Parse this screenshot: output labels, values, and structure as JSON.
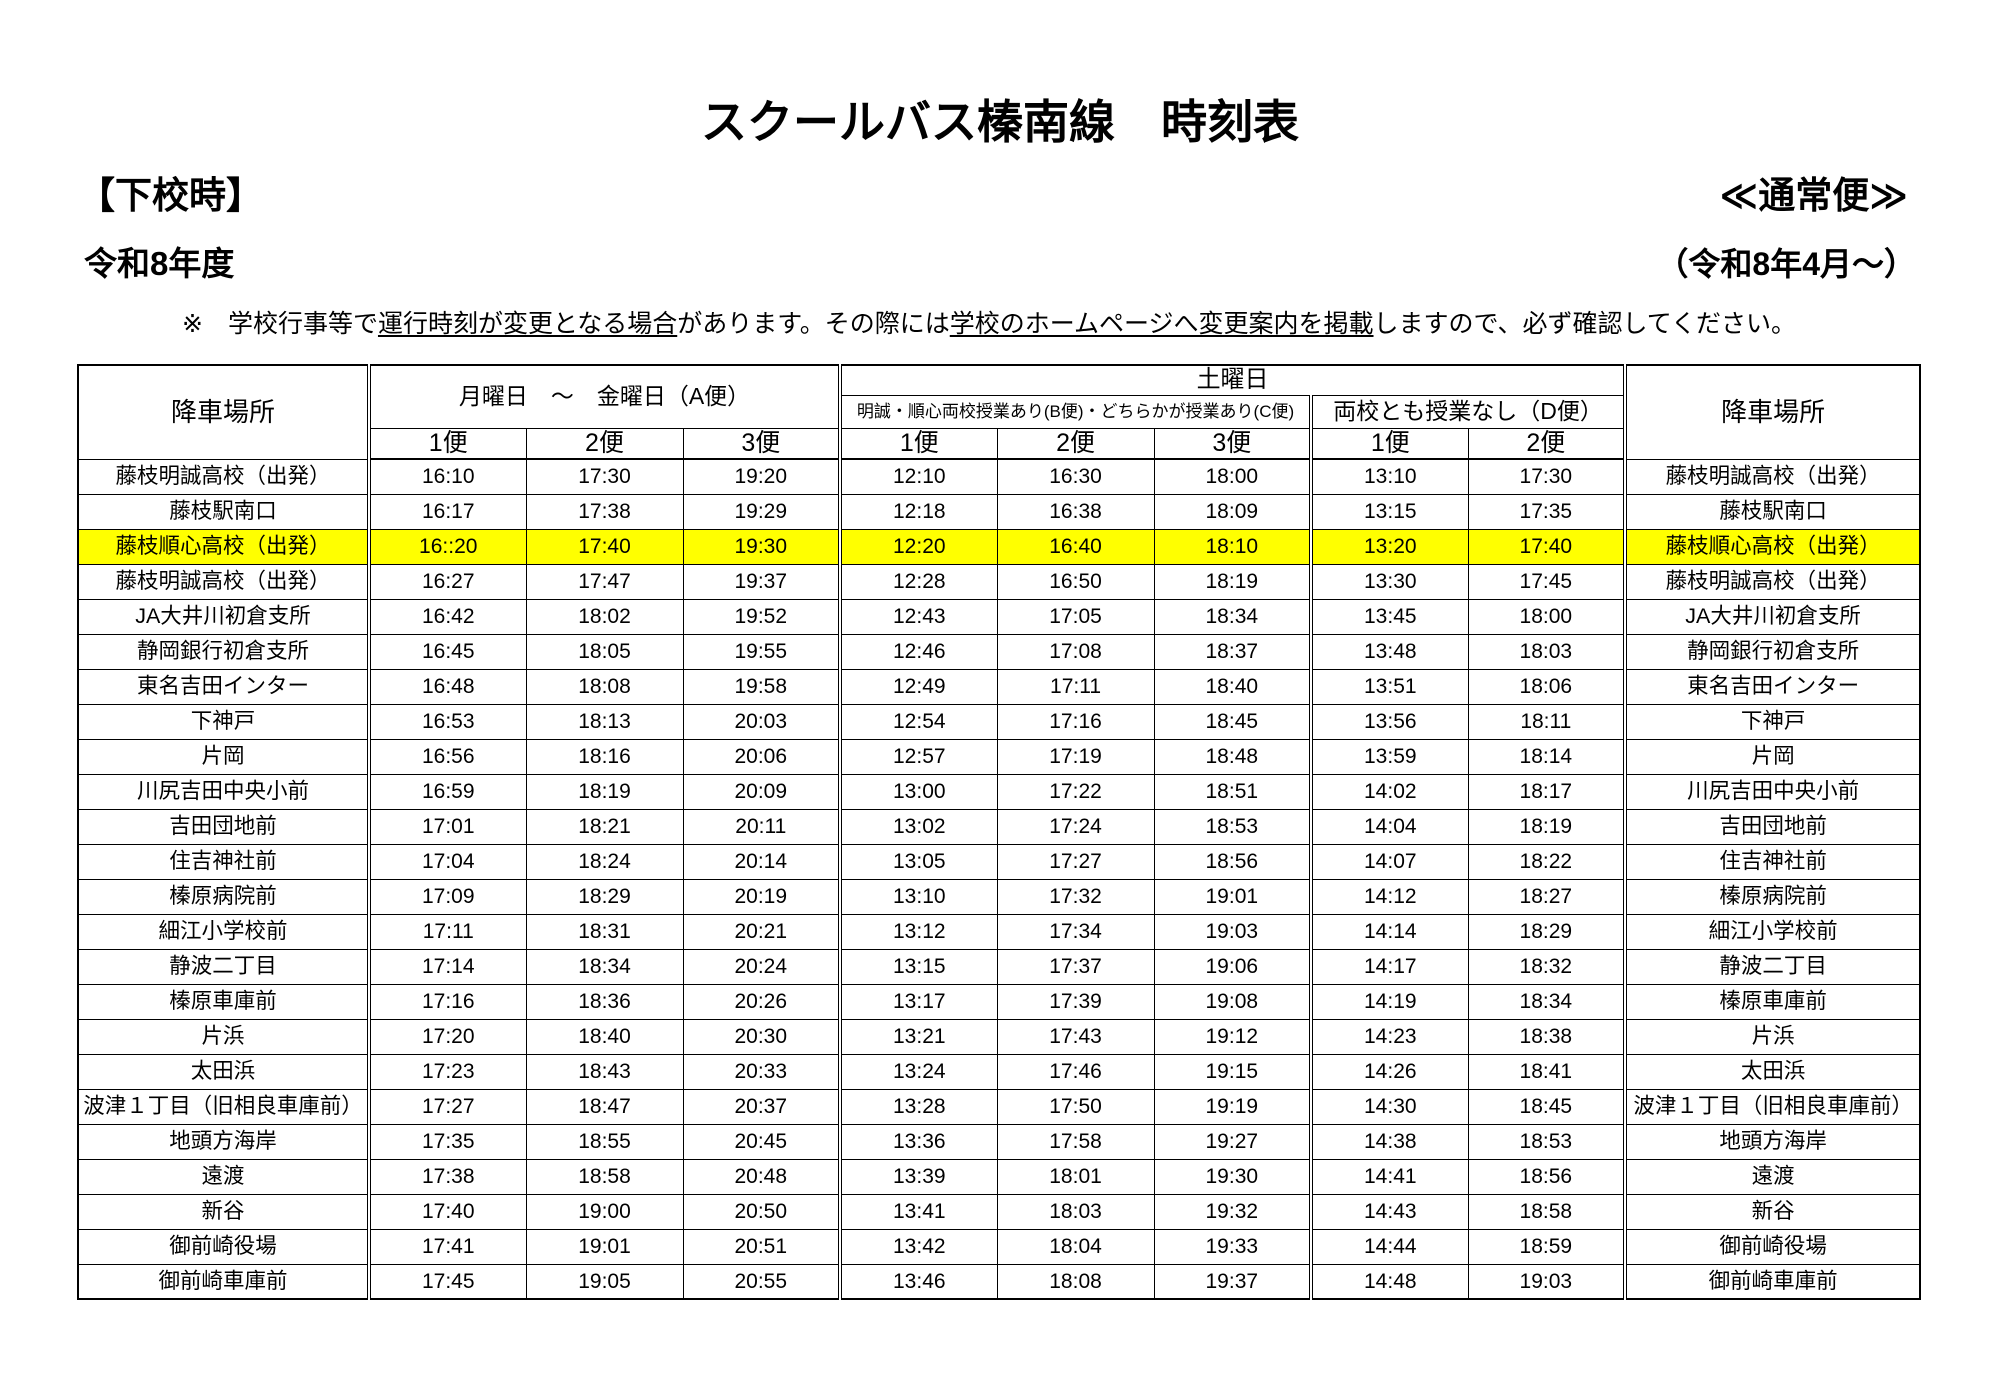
{
  "title": "スクールバス榛南線　時刻表",
  "section": "【下校時】",
  "service_type": "≪通常便≫",
  "fiscal_year": "令和8年度",
  "effective_from": "（令和8年4月～）",
  "notice": {
    "mark": "※",
    "text1": "学校行事等で",
    "underline1": "運行時刻が変更となる場合",
    "text2": "があります。その際には",
    "underline2": "学校のホームページへ変更案内を掲載",
    "text3": "しますので、必ず確認してください。"
  },
  "colors": {
    "highlight": "#FFFF00",
    "text": "#000000",
    "border": "#000000"
  },
  "timetable": {
    "stop_header": "降車場所",
    "weekday_header": "月曜日　～　金曜日（A便）",
    "saturday_header": "土曜日",
    "saturday_bc_header": "明誠・順心両校授業あり(B便)・どちらかが授業あり(C便)",
    "saturday_d_header": "両校とも授業なし（D便）",
    "trip_labels": [
      "1便",
      "2便",
      "3便",
      "1便",
      "2便",
      "3便",
      "1便",
      "2便"
    ],
    "rows": [
      {
        "stop": "藤枝明誠高校（出発）",
        "times": [
          "16:10",
          "17:30",
          "19:20",
          "12:10",
          "16:30",
          "18:00",
          "13:10",
          "17:30"
        ]
      },
      {
        "stop": "藤枝駅南口",
        "times": [
          "16:17",
          "17:38",
          "19:29",
          "12:18",
          "16:38",
          "18:09",
          "13:15",
          "17:35"
        ]
      },
      {
        "stop": "藤枝順心高校（出発）",
        "times": [
          "16::20",
          "17:40",
          "19:30",
          "12:20",
          "16:40",
          "18:10",
          "13:20",
          "17:40"
        ],
        "highlight": true
      },
      {
        "stop": "藤枝明誠高校（出発）",
        "times": [
          "16:27",
          "17:47",
          "19:37",
          "12:28",
          "16:50",
          "18:19",
          "13:30",
          "17:45"
        ]
      },
      {
        "stop": "JA大井川初倉支所",
        "times": [
          "16:42",
          "18:02",
          "19:52",
          "12:43",
          "17:05",
          "18:34",
          "13:45",
          "18:00"
        ]
      },
      {
        "stop": "静岡銀行初倉支所",
        "times": [
          "16:45",
          "18:05",
          "19:55",
          "12:46",
          "17:08",
          "18:37",
          "13:48",
          "18:03"
        ]
      },
      {
        "stop": "東名吉田インター",
        "times": [
          "16:48",
          "18:08",
          "19:58",
          "12:49",
          "17:11",
          "18:40",
          "13:51",
          "18:06"
        ]
      },
      {
        "stop": "下神戸",
        "times": [
          "16:53",
          "18:13",
          "20:03",
          "12:54",
          "17:16",
          "18:45",
          "13:56",
          "18:11"
        ]
      },
      {
        "stop": "片岡",
        "times": [
          "16:56",
          "18:16",
          "20:06",
          "12:57",
          "17:19",
          "18:48",
          "13:59",
          "18:14"
        ]
      },
      {
        "stop": "川尻吉田中央小前",
        "times": [
          "16:59",
          "18:19",
          "20:09",
          "13:00",
          "17:22",
          "18:51",
          "14:02",
          "18:17"
        ]
      },
      {
        "stop": "吉田団地前",
        "times": [
          "17:01",
          "18:21",
          "20:11",
          "13:02",
          "17:24",
          "18:53",
          "14:04",
          "18:19"
        ]
      },
      {
        "stop": "住吉神社前",
        "times": [
          "17:04",
          "18:24",
          "20:14",
          "13:05",
          "17:27",
          "18:56",
          "14:07",
          "18:22"
        ]
      },
      {
        "stop": "榛原病院前",
        "times": [
          "17:09",
          "18:29",
          "20:19",
          "13:10",
          "17:32",
          "19:01",
          "14:12",
          "18:27"
        ]
      },
      {
        "stop": "細江小学校前",
        "times": [
          "17:11",
          "18:31",
          "20:21",
          "13:12",
          "17:34",
          "19:03",
          "14:14",
          "18:29"
        ]
      },
      {
        "stop": "静波二丁目",
        "times": [
          "17:14",
          "18:34",
          "20:24",
          "13:15",
          "17:37",
          "19:06",
          "14:17",
          "18:32"
        ]
      },
      {
        "stop": "榛原車庫前",
        "times": [
          "17:16",
          "18:36",
          "20:26",
          "13:17",
          "17:39",
          "19:08",
          "14:19",
          "18:34"
        ]
      },
      {
        "stop": "片浜",
        "times": [
          "17:20",
          "18:40",
          "20:30",
          "13:21",
          "17:43",
          "19:12",
          "14:23",
          "18:38"
        ]
      },
      {
        "stop": "太田浜",
        "times": [
          "17:23",
          "18:43",
          "20:33",
          "13:24",
          "17:46",
          "19:15",
          "14:26",
          "18:41"
        ]
      },
      {
        "stop": "波津１丁目（旧相良車庫前）",
        "times": [
          "17:27",
          "18:47",
          "20:37",
          "13:28",
          "17:50",
          "19:19",
          "14:30",
          "18:45"
        ]
      },
      {
        "stop": "地頭方海岸",
        "times": [
          "17:35",
          "18:55",
          "20:45",
          "13:36",
          "17:58",
          "19:27",
          "14:38",
          "18:53"
        ]
      },
      {
        "stop": "遠渡",
        "times": [
          "17:38",
          "18:58",
          "20:48",
          "13:39",
          "18:01",
          "19:30",
          "14:41",
          "18:56"
        ]
      },
      {
        "stop": "新谷",
        "times": [
          "17:40",
          "19:00",
          "20:50",
          "13:41",
          "18:03",
          "19:32",
          "14:43",
          "18:58"
        ]
      },
      {
        "stop": "御前崎役場",
        "times": [
          "17:41",
          "19:01",
          "20:51",
          "13:42",
          "18:04",
          "19:33",
          "14:44",
          "18:59"
        ]
      },
      {
        "stop": "御前崎車庫前",
        "times": [
          "17:45",
          "19:05",
          "20:55",
          "13:46",
          "18:08",
          "19:37",
          "14:48",
          "19:03"
        ]
      }
    ]
  }
}
